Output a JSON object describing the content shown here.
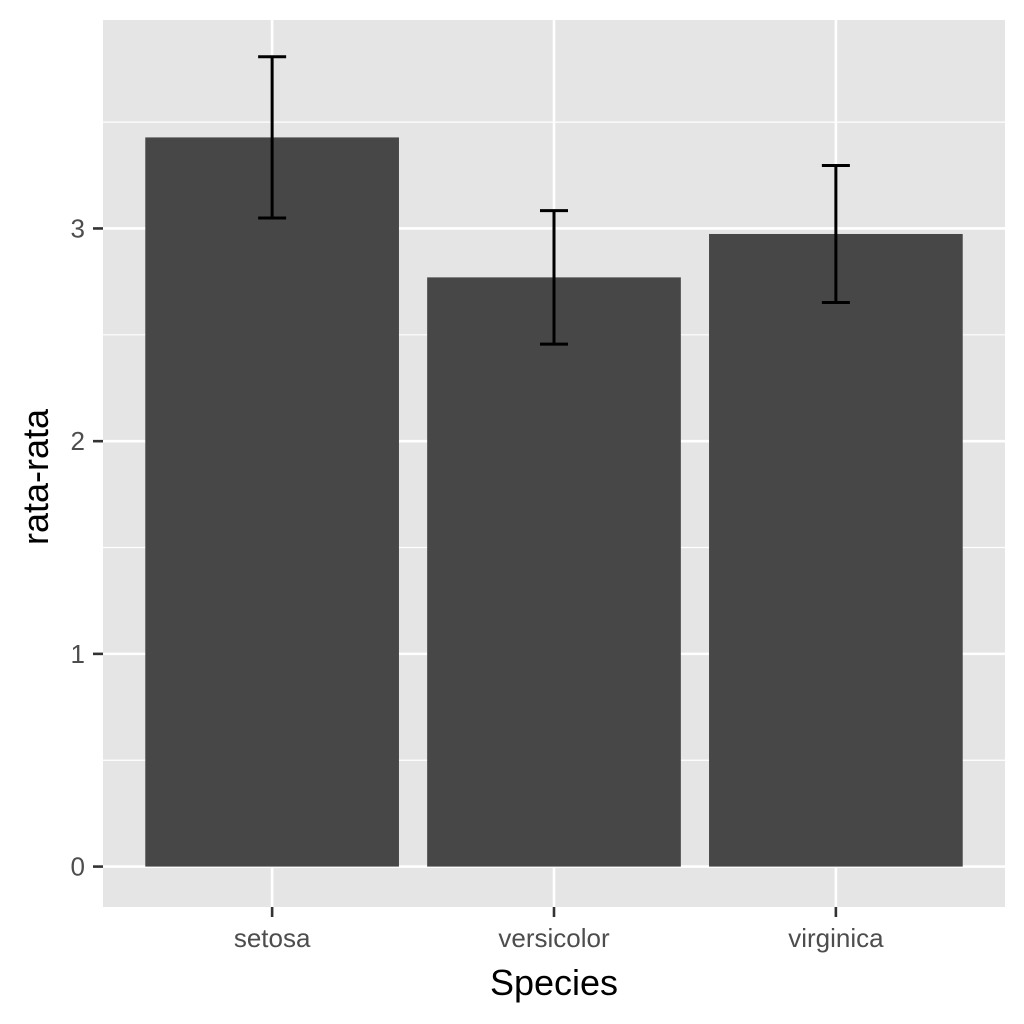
{
  "chart_data": {
    "type": "bar",
    "title": "",
    "xlabel": "Species",
    "ylabel": "rata-rata",
    "categories": [
      "setosa",
      "versicolor",
      "virginica"
    ],
    "values": [
      3.428,
      2.77,
      2.974
    ],
    "error_low": [
      3.049,
      2.456,
      2.652
    ],
    "error_high": [
      3.807,
      3.084,
      3.296
    ],
    "ylim": [
      -0.19,
      3.98
    ],
    "yticks": [
      0,
      1,
      2,
      3
    ],
    "ytick_labels": [
      "0",
      "1",
      "2",
      "3"
    ],
    "grid": true,
    "legend": "none",
    "colors": {
      "bar": "#474747",
      "panel": "#e5e5e5",
      "grid": "#ffffff",
      "errorbar": "#000000",
      "tick": "#333333"
    }
  }
}
